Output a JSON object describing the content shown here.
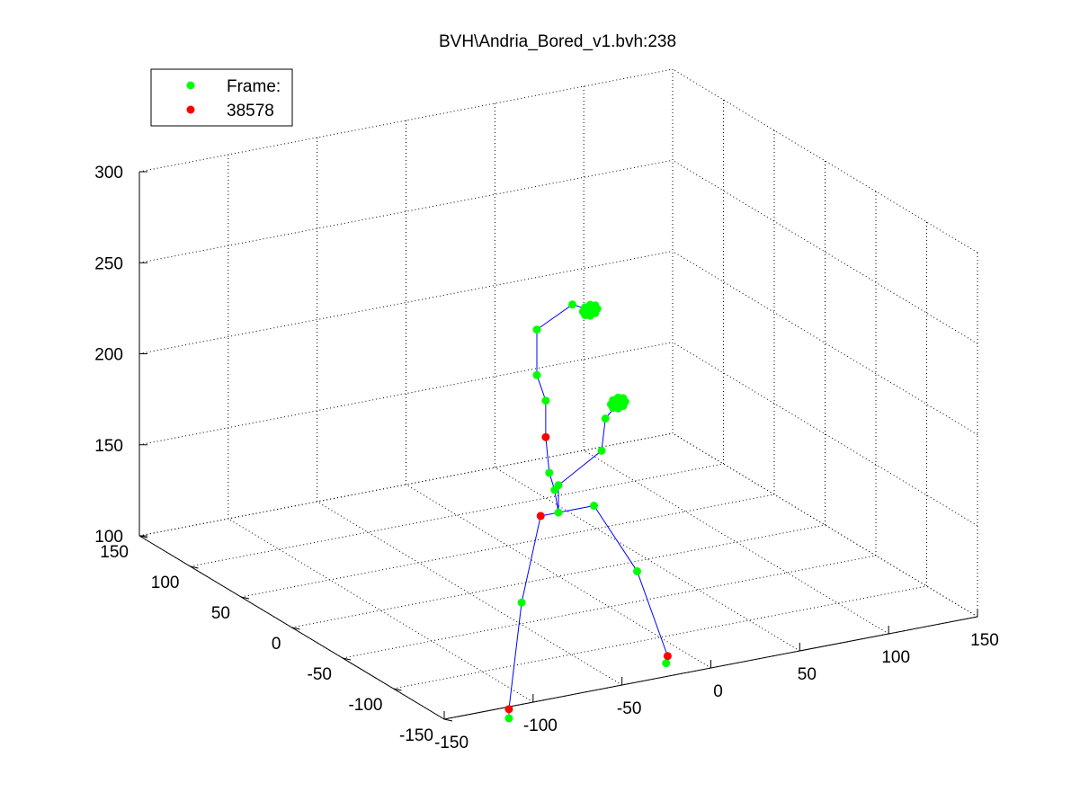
{
  "chart_data": {
    "type": "scatter",
    "title": "BVH\\Andria_Bored_v1.bvh:238",
    "view": "3d",
    "grid": true,
    "legend_position": "top-left",
    "legend": [
      {
        "label": "Frame:",
        "color": "#00ff00"
      },
      {
        "label": "38578",
        "color": "#ff0000"
      }
    ],
    "axes": {
      "x": {
        "range": [
          -150,
          150
        ],
        "ticks": [
          -150,
          -100,
          -50,
          0,
          50,
          100,
          150
        ]
      },
      "y": {
        "range": [
          -150,
          150
        ],
        "ticks": [
          -150,
          -100,
          -50,
          0,
          50,
          100,
          150
        ]
      },
      "z": {
        "range": [
          100,
          300
        ],
        "ticks": [
          100,
          150,
          200,
          250,
          300
        ]
      }
    },
    "colors": {
      "joint": "#00ff00",
      "end_effector": "#ff0000",
      "bone": "#0000ff"
    },
    "joints": [
      {
        "x": 0,
        "y": 0,
        "z": 135,
        "type": "joint"
      },
      {
        "x": -10,
        "y": 0,
        "z": 135,
        "type": "end_effector"
      },
      {
        "x": -15,
        "y": 10,
        "z": 85,
        "type": "joint"
      },
      {
        "x": -25,
        "y": 5,
        "z": 30,
        "type": "end_effector"
      },
      {
        "x": -25,
        "y": 5,
        "z": 25,
        "type": "joint"
      },
      {
        "x": 20,
        "y": 0,
        "z": 135,
        "type": "joint"
      },
      {
        "x": 50,
        "y": 10,
        "z": 90,
        "type": "joint"
      },
      {
        "x": 70,
        "y": 15,
        "z": 38,
        "type": "end_effector"
      },
      {
        "x": 72,
        "y": 20,
        "z": 32,
        "type": "joint"
      },
      {
        "x": -5,
        "y": -5,
        "z": 150,
        "type": "joint"
      },
      {
        "x": -8,
        "y": -5,
        "z": 160,
        "type": "joint"
      },
      {
        "x": -10,
        "y": -5,
        "z": 180,
        "type": "end_effector"
      },
      {
        "x": -10,
        "y": -5,
        "z": 200,
        "type": "joint"
      },
      {
        "x": -15,
        "y": -5,
        "z": 215,
        "type": "joint"
      },
      {
        "x": 0,
        "y": 0,
        "z": 150,
        "type": "joint"
      },
      {
        "x": 30,
        "y": 10,
        "z": 160,
        "type": "joint"
      },
      {
        "x": 35,
        "y": 15,
        "z": 175,
        "type": "joint"
      },
      {
        "x": 45,
        "y": 20,
        "z": 180,
        "type": "joint"
      },
      {
        "x": -15,
        "y": -5,
        "z": 240,
        "type": "joint"
      },
      {
        "x": 5,
        "y": -5,
        "z": 250,
        "type": "joint"
      },
      {
        "x": 15,
        "y": -5,
        "z": 245,
        "type": "joint"
      }
    ],
    "bones": [
      [
        0,
        1
      ],
      [
        1,
        2
      ],
      [
        2,
        3
      ],
      [
        3,
        4
      ],
      [
        0,
        5
      ],
      [
        5,
        6
      ],
      [
        6,
        7
      ],
      [
        7,
        8
      ],
      [
        0,
        9
      ],
      [
        9,
        10
      ],
      [
        10,
        11
      ],
      [
        11,
        12
      ],
      [
        12,
        13
      ],
      [
        13,
        18
      ],
      [
        18,
        19
      ],
      [
        19,
        20
      ],
      [
        0,
        14
      ],
      [
        14,
        15
      ],
      [
        15,
        16
      ],
      [
        16,
        17
      ]
    ]
  }
}
